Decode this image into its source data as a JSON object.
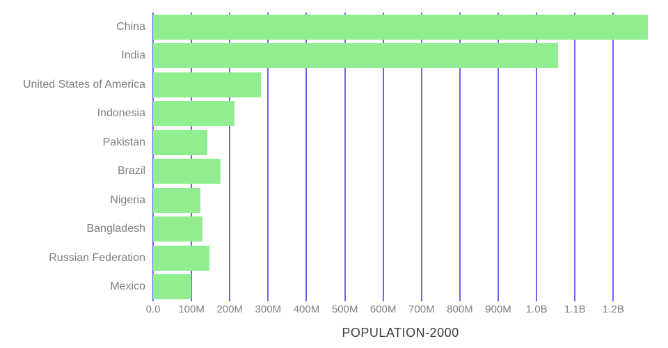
{
  "chart_data": {
    "type": "bar",
    "orientation": "horizontal",
    "title": "POPULATION-2000",
    "categories": [
      "China",
      "India",
      "United States of America",
      "Indonesia",
      "Pakistan",
      "Brazil",
      "Nigeria",
      "Bangladesh",
      "Russian Federation",
      "Mexico"
    ],
    "values_millions": [
      1290,
      1056,
      282,
      213,
      142,
      176,
      124,
      129,
      147,
      99
    ],
    "xlabel": "",
    "ylabel": "",
    "xlim_millions": [
      0,
      1290
    ],
    "x_ticks": {
      "labels": [
        "0.0",
        "100M",
        "200M",
        "300M",
        "400M",
        "500M",
        "600M",
        "700M",
        "800M",
        "900M",
        "1.0B",
        "1.1B",
        "1.2B"
      ],
      "values_millions": [
        0,
        100,
        200,
        300,
        400,
        500,
        600,
        700,
        800,
        900,
        1000,
        1100,
        1200
      ]
    },
    "grid": "vertical-only",
    "legend": "none",
    "title_position": "bottom-center",
    "colors": {
      "bar": "#90EE90",
      "gridline": "#6B66F1",
      "category_label": "#7E7E7E",
      "axis_label": "#808080",
      "title": "#3C3C3C",
      "background": "#FFFFFF"
    }
  }
}
